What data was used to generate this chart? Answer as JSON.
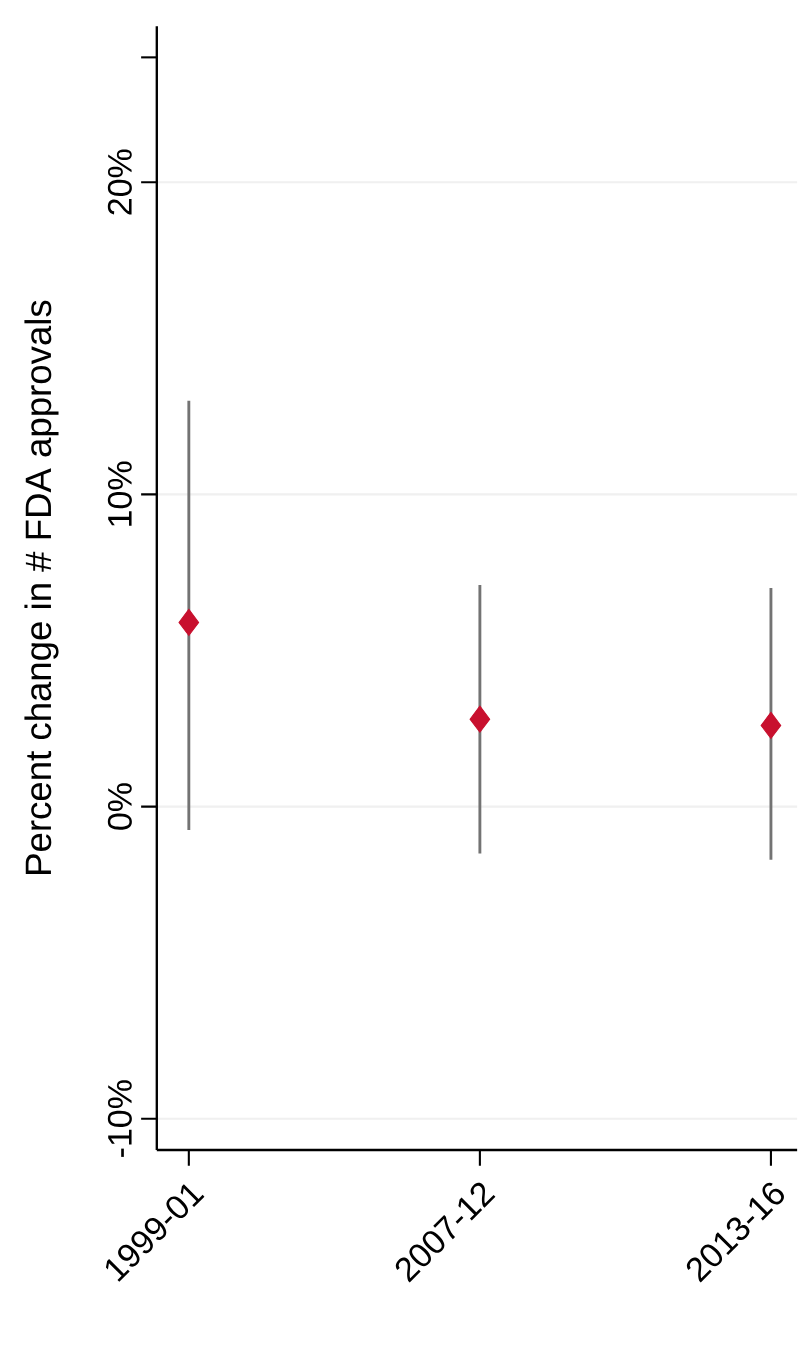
{
  "chart_data": {
    "type": "scatter",
    "ylabel": "Percent change in # FDA approvals",
    "categories": [
      "1999-01",
      "2007-12",
      "2013-16"
    ],
    "series": [
      {
        "color": "#c8102e",
        "values": [
          5.9,
          2.8,
          2.6
        ],
        "errors": [
          [
            -0.75,
            13.0
          ],
          [
            -1.5,
            7.1
          ],
          [
            -1.7,
            7.0
          ]
        ]
      }
    ],
    "ylim": [
      -11,
      25
    ],
    "yticks": [
      {
        "value": -10,
        "label": "-10%"
      },
      {
        "value": 0,
        "label": "0%"
      },
      {
        "value": 10,
        "label": "10%"
      },
      {
        "value": 20,
        "label": "20%"
      },
      {
        "value": 24,
        "label": null
      }
    ],
    "grid": "y",
    "marker": "diamond"
  }
}
